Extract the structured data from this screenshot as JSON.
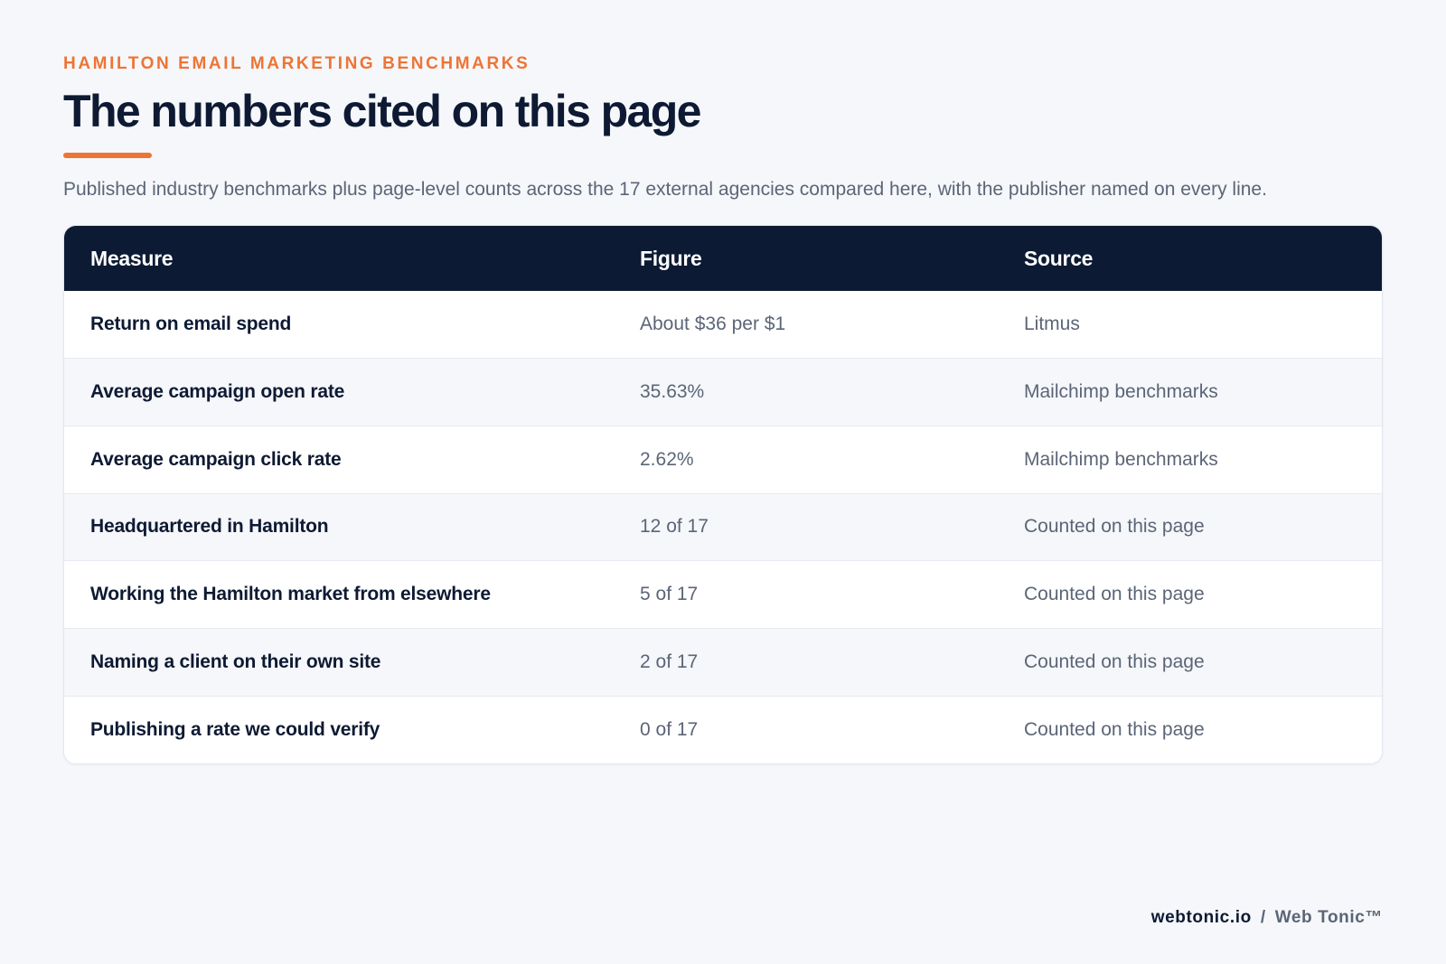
{
  "header": {
    "eyebrow": "HAMILTON EMAIL MARKETING BENCHMARKS",
    "title": "The numbers cited on this page",
    "subtitle": "Published industry benchmarks plus page-level counts across the 17 external agencies compared here, with the publisher named on every line."
  },
  "colors": {
    "accent": "#ee7434",
    "navy": "#0c1a34",
    "background": "#f5f7fa"
  },
  "table": {
    "columns": [
      "Measure",
      "Figure",
      "Source"
    ],
    "rows": [
      {
        "measure": "Return on email spend",
        "figure": "About $36 per $1",
        "source": "Litmus"
      },
      {
        "measure": "Average campaign open rate",
        "figure": "35.63%",
        "source": "Mailchimp benchmarks"
      },
      {
        "measure": "Average campaign click rate",
        "figure": "2.62%",
        "source": "Mailchimp benchmarks"
      },
      {
        "measure": "Headquartered in Hamilton",
        "figure": "12 of 17",
        "source": "Counted on this page"
      },
      {
        "measure": "Working the Hamilton market from elsewhere",
        "figure": "5 of 17",
        "source": "Counted on this page"
      },
      {
        "measure": "Naming a client on their own site",
        "figure": "2 of 17",
        "source": "Counted on this page"
      },
      {
        "measure": "Publishing a rate we could verify",
        "figure": "0 of 17",
        "source": "Counted on this page"
      }
    ]
  },
  "footer": {
    "site": "webtonic.io",
    "separator": "/",
    "brand": "Web Tonic™"
  }
}
